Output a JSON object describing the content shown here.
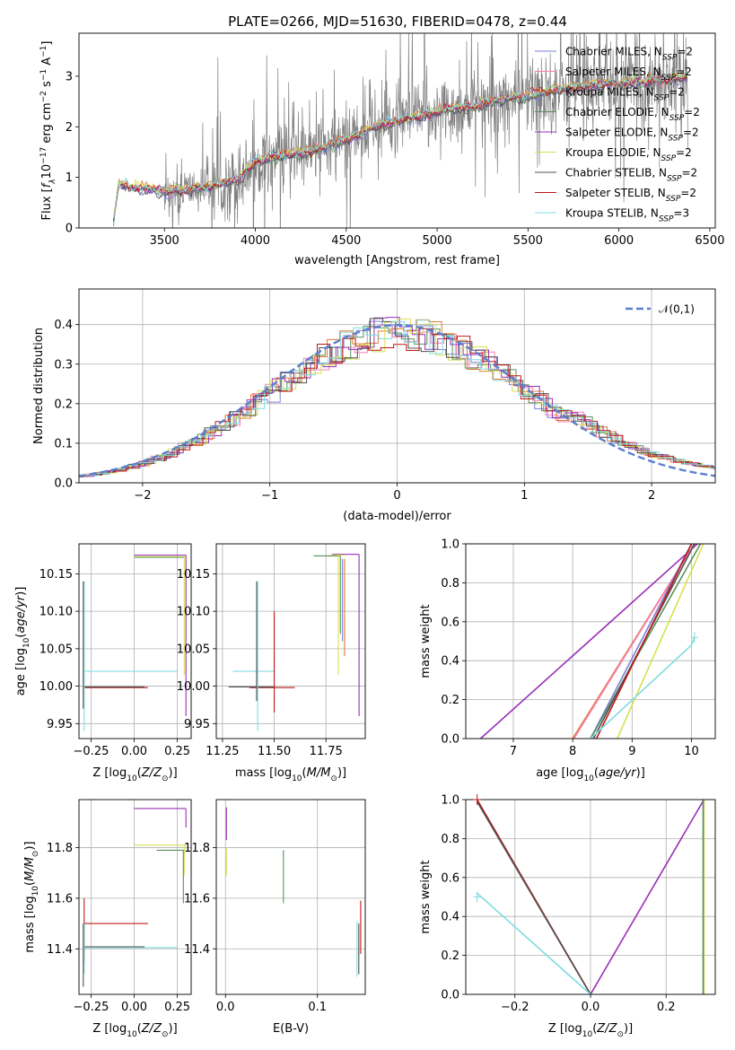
{
  "title": "PLATE=0266, MJD=51630, FIBERID=0478, z=0.44",
  "colors": {
    "Chabrier MILES": "#7b7fd6",
    "Salpeter MILES": "#f77fb2",
    "Kroupa MILES": "#e07b30",
    "Chabrier ELODIE": "#5a8f5a",
    "Salpeter ELODIE": "#9a30b8",
    "Kroupa ELODIE": "#d8e050",
    "Chabrier STELIB": "#505050",
    "Salpeter STELIB": "#c01818",
    "Kroupa STELIB": "#80dce0",
    "data": "#808080",
    "normal": "#5b7fd0"
  },
  "chart_data": [
    {
      "id": "spectrum",
      "type": "line",
      "title": "PLATE=0266, MJD=51630, FIBERID=0478, z=0.44",
      "xlabel": "wavelength [Angstrom, rest frame]",
      "ylabel": "Flux [f_λ 10^-17 erg cm^-2 s^-1 A^-1]",
      "xlim": [
        3030,
        6530
      ],
      "ylim": [
        0,
        3.85
      ],
      "xticks": [
        3500,
        4000,
        4500,
        5000,
        5500,
        6000,
        6500
      ],
      "yticks": [
        0,
        1,
        2,
        3
      ],
      "legend_position": "top-right",
      "series": [
        {
          "name": "Chabrier MILES, N_SSP=2"
        },
        {
          "name": "Salpeter MILES, N_SSP=2"
        },
        {
          "name": "Kroupa MILES, N_SSP=2"
        },
        {
          "name": "Chabrier ELODIE, N_SSP=2"
        },
        {
          "name": "Salpeter ELODIE, N_SSP=2"
        },
        {
          "name": "Kroupa ELODIE, N_SSP=2"
        },
        {
          "name": "Chabrier STELIB, N_SSP=2"
        },
        {
          "name": "Salpeter STELIB, N_SSP=2"
        },
        {
          "name": "Kroupa STELIB, N_SSP=3"
        }
      ],
      "continuum": {
        "x": [
          3220,
          3250,
          3300,
          3500,
          3700,
          3900,
          4000,
          4100,
          4300,
          4500,
          4700,
          4900,
          5000,
          5200,
          5400,
          5600,
          5800,
          6000,
          6200,
          6380
        ],
        "y": [
          0.15,
          0.9,
          0.82,
          0.72,
          0.78,
          0.95,
          1.3,
          1.4,
          1.5,
          1.75,
          2.05,
          2.2,
          2.3,
          2.4,
          2.55,
          2.7,
          2.8,
          2.85,
          2.9,
          3.0
        ]
      }
    },
    {
      "id": "residuals",
      "type": "bar",
      "xlabel": "(data-model)/error",
      "ylabel": "Normed distribution",
      "xlim": [
        -2.5,
        2.5
      ],
      "ylim": [
        0,
        0.49
      ],
      "xticks": [
        -2,
        -1,
        0,
        1,
        2
      ],
      "yticks": [
        0.0,
        0.1,
        0.2,
        0.3,
        0.4
      ],
      "legend": "𝒩(0,1)",
      "grid": true
    },
    {
      "id": "age_vs_Z",
      "type": "scatter",
      "xlabel": "Z [log10(Z/Z⊙)]",
      "ylabel": "age  [log10(age/yr)]",
      "xlim": [
        -0.32,
        0.33
      ],
      "ylim": [
        9.93,
        10.19
      ],
      "xticks": [
        -0.25,
        0.0,
        0.25
      ],
      "yticks": [
        9.95,
        10.0,
        10.05,
        10.1,
        10.15
      ],
      "grid": true,
      "segments": [
        {
          "series": "Salpeter ELODIE",
          "x": [
            0.0,
            0.3
          ],
          "y": [
            10.175,
            10.175
          ]
        },
        {
          "series": "Kroupa ELODIE",
          "x": [
            0.0,
            0.3
          ],
          "y": [
            10.173,
            10.173
          ]
        },
        {
          "series": "Chabrier ELODIE",
          "x": [
            0.0,
            0.29
          ],
          "y": [
            10.172,
            10.172
          ]
        },
        {
          "series": "Salpeter ELODIE",
          "x": [
            0.3,
            0.3
          ],
          "y": [
            9.96,
            10.175
          ]
        },
        {
          "series": "Kroupa ELODIE",
          "x": [
            0.29,
            0.29
          ],
          "y": [
            10.015,
            10.173
          ]
        },
        {
          "series": "Kroupa STELIB",
          "x": [
            -0.29,
            0.25
          ],
          "y": [
            10.02,
            10.02
          ]
        },
        {
          "series": "Salpeter STELIB",
          "x": [
            -0.29,
            0.08
          ],
          "y": [
            9.998,
            9.998
          ]
        },
        {
          "series": "Chabrier STELIB",
          "x": [
            -0.29,
            0.06
          ],
          "y": [
            9.999,
            9.999
          ]
        },
        {
          "series": "Kroupa STELIB",
          "x": [
            -0.29,
            -0.29
          ],
          "y": [
            9.94,
            10.14
          ]
        },
        {
          "series": "Chabrier STELIB",
          "x": [
            -0.295,
            -0.295
          ],
          "y": [
            9.97,
            10.14
          ]
        }
      ]
    },
    {
      "id": "age_vs_mass",
      "type": "scatter",
      "xlabel": "mass [log10(M/M⊙)]",
      "xlim": [
        11.22,
        11.94
      ],
      "ylim": [
        9.93,
        10.19
      ],
      "xticks": [
        11.25,
        11.5,
        11.75
      ],
      "yticks": [
        9.95,
        10.0,
        10.05,
        10.1,
        10.15
      ],
      "grid": true,
      "segments": [
        {
          "series": "Chabrier ELODIE",
          "x": [
            11.69,
            11.82
          ],
          "y": [
            10.174,
            10.174
          ]
        },
        {
          "series": "Salpeter ELODIE",
          "x": [
            11.78,
            11.91
          ],
          "y": [
            10.176,
            10.176
          ]
        },
        {
          "series": "Kroupa ELODIE",
          "x": [
            11.77,
            11.84
          ],
          "y": [
            10.175,
            10.175
          ]
        },
        {
          "series": "Salpeter ELODIE",
          "x": [
            11.91,
            11.91
          ],
          "y": [
            9.96,
            10.176
          ]
        },
        {
          "series": "Kroupa ELODIE",
          "x": [
            11.81,
            11.81
          ],
          "y": [
            10.015,
            10.175
          ]
        },
        {
          "series": "Chabrier MILES",
          "x": [
            11.83,
            11.83
          ],
          "y": [
            10.06,
            10.17
          ]
        },
        {
          "series": "Kroupa MILES",
          "x": [
            11.84,
            11.84
          ],
          "y": [
            10.04,
            10.17
          ]
        },
        {
          "series": "Chabrier ELODIE",
          "x": [
            11.82,
            11.82
          ],
          "y": [
            10.07,
            10.174
          ]
        },
        {
          "series": "Kroupa STELIB",
          "x": [
            11.3,
            11.5
          ],
          "y": [
            10.02,
            10.02
          ]
        },
        {
          "series": "Salpeter STELIB",
          "x": [
            11.38,
            11.6
          ],
          "y": [
            9.998,
            9.998
          ]
        },
        {
          "series": "Chabrier STELIB",
          "x": [
            11.28,
            11.5
          ],
          "y": [
            9.999,
            9.999
          ]
        },
        {
          "series": "Kroupa STELIB",
          "x": [
            11.42,
            11.42
          ],
          "y": [
            9.94,
            10.14
          ]
        },
        {
          "series": "Chabrier STELIB",
          "x": [
            11.415,
            11.415
          ],
          "y": [
            9.98,
            10.14
          ]
        },
        {
          "series": "Salpeter STELIB",
          "x": [
            11.5,
            11.5
          ],
          "y": [
            9.965,
            10.1
          ]
        }
      ]
    },
    {
      "id": "massweight_vs_age",
      "type": "line",
      "xlabel": "age  [log10(age/yr)]",
      "ylabel": "mass weight",
      "xlim": [
        6.2,
        10.4
      ],
      "ylim": [
        0,
        1.0
      ],
      "xticks": [
        7,
        8,
        9,
        10
      ],
      "yticks": [
        0.0,
        0.2,
        0.4,
        0.6,
        0.8,
        1.0
      ],
      "grid": true,
      "series": [
        {
          "series": "Salpeter ELODIE",
          "x": [
            6.45,
            10.1
          ],
          "y": [
            0,
            1
          ]
        },
        {
          "series": "Kroupa MILES",
          "x": [
            8.0,
            10.05
          ],
          "y": [
            0,
            1
          ]
        },
        {
          "series": "Salpeter MILES",
          "x": [
            8.02,
            10.05
          ],
          "y": [
            0,
            1
          ]
        },
        {
          "series": "Chabrier MILES",
          "x": [
            8.3,
            10.0
          ],
          "y": [
            0,
            1
          ]
        },
        {
          "series": "Chabrier ELODIE",
          "x": [
            8.3,
            10.15
          ],
          "y": [
            0,
            1
          ]
        },
        {
          "series": "Chabrier STELIB",
          "x": [
            8.35,
            10.05
          ],
          "y": [
            0,
            1
          ]
        },
        {
          "series": "Salpeter STELIB",
          "x": [
            8.4,
            10.0
          ],
          "y": [
            0,
            1
          ]
        },
        {
          "series": "Kroupa ELODIE",
          "x": [
            8.75,
            10.2
          ],
          "y": [
            0,
            1
          ]
        },
        {
          "series": "Kroupa STELIB",
          "x": [
            8.3,
            10.0,
            10.05
          ],
          "y": [
            0,
            0.48,
            0.52
          ]
        }
      ]
    },
    {
      "id": "mass_vs_Z",
      "type": "scatter",
      "xlabel": "Z [log10(Z/Z⊙)]",
      "ylabel": "mass [log10(M/M⊙)]",
      "xlim": [
        -0.32,
        0.33
      ],
      "ylim": [
        11.22,
        11.99
      ],
      "xticks": [
        -0.25,
        0.0,
        0.25
      ],
      "yticks": [
        11.4,
        11.6,
        11.8
      ],
      "grid": true,
      "segments": [
        {
          "series": "Salpeter ELODIE",
          "x": [
            0.0,
            0.3
          ],
          "y": [
            11.955,
            11.955
          ]
        },
        {
          "series": "Kroupa ELODIE",
          "x": [
            0.0,
            0.3
          ],
          "y": [
            11.81,
            11.81
          ]
        },
        {
          "series": "Chabrier ELODIE",
          "x": [
            0.13,
            0.29
          ],
          "y": [
            11.79,
            11.79
          ]
        },
        {
          "series": "Salpeter ELODIE",
          "x": [
            0.3,
            0.3
          ],
          "y": [
            11.88,
            11.955
          ]
        },
        {
          "series": "Kroupa ELODIE",
          "x": [
            0.29,
            0.29
          ],
          "y": [
            11.69,
            11.81
          ]
        },
        {
          "series": "Chabrier ELODIE",
          "x": [
            0.285,
            0.285
          ],
          "y": [
            11.58,
            11.79
          ]
        },
        {
          "series": "Salpeter STELIB",
          "x": [
            -0.29,
            0.08
          ],
          "y": [
            11.5,
            11.5
          ]
        },
        {
          "series": "Salpeter STELIB",
          "x": [
            -0.29,
            -0.29
          ],
          "y": [
            11.35,
            11.6
          ]
        },
        {
          "series": "Kroupa STELIB",
          "x": [
            -0.29,
            0.25
          ],
          "y": [
            11.405,
            11.405
          ]
        },
        {
          "series": "Chabrier STELIB",
          "x": [
            -0.29,
            0.06
          ],
          "y": [
            11.408,
            11.408
          ]
        },
        {
          "series": "Kroupa STELIB",
          "x": [
            -0.29,
            -0.29
          ],
          "y": [
            11.3,
            11.5
          ]
        },
        {
          "series": "Chabrier STELIB",
          "x": [
            -0.295,
            -0.295
          ],
          "y": [
            11.25,
            11.5
          ]
        }
      ]
    },
    {
      "id": "mass_vs_ebv",
      "type": "scatter",
      "xlabel": "E(B-V)",
      "xlim": [
        -0.01,
        0.152
      ],
      "ylim": [
        11.22,
        11.99
      ],
      "xticks": [
        0.0,
        0.1
      ],
      "yticks": [
        11.4,
        11.6,
        11.8
      ],
      "grid": true,
      "segments": [
        {
          "series": "Salpeter ELODIE",
          "x": [
            0.001,
            0.001
          ],
          "y": [
            11.83,
            11.96
          ]
        },
        {
          "series": "Kroupa ELODIE",
          "x": [
            0.001,
            0.001
          ],
          "y": [
            11.69,
            11.8
          ]
        },
        {
          "series": "Chabrier ELODIE",
          "x": [
            0.063,
            0.063
          ],
          "y": [
            11.58,
            11.79
          ]
        },
        {
          "series": "Kroupa STELIB",
          "x": [
            0.143,
            0.143
          ],
          "y": [
            11.29,
            11.51
          ]
        },
        {
          "series": "Salpeter STELIB",
          "x": [
            0.147,
            0.147
          ],
          "y": [
            11.38,
            11.59
          ]
        },
        {
          "series": "Chabrier STELIB",
          "x": [
            0.145,
            0.145
          ],
          "y": [
            11.3,
            11.5
          ]
        }
      ]
    },
    {
      "id": "massweight_vs_Z",
      "type": "line",
      "xlabel": "Z [log10(Z/Z⊙)]",
      "ylabel": "mass weight",
      "xlim": [
        -0.33,
        0.33
      ],
      "ylim": [
        0,
        1.0
      ],
      "xticks": [
        -0.2,
        0.0,
        0.2
      ],
      "yticks": [
        0.0,
        0.2,
        0.4,
        0.6,
        0.8,
        1.0
      ],
      "grid": true,
      "series": [
        {
          "series": "Salpeter ELODIE",
          "x": [
            0.0,
            0.3
          ],
          "y": [
            0,
            1
          ]
        },
        {
          "series": "Salpeter STELIB",
          "x": [
            -0.3,
            0.0
          ],
          "y": [
            1,
            0
          ]
        },
        {
          "series": "Chabrier STELIB",
          "x": [
            -0.3,
            0.0
          ],
          "y": [
            0.99,
            0
          ]
        },
        {
          "series": "Kroupa STELIB",
          "x": [
            -0.3,
            0.0
          ],
          "y": [
            0.52,
            0
          ]
        },
        {
          "series": "Kroupa ELODIE",
          "x": [
            0.3,
            0.3
          ],
          "y": [
            0,
            1
          ]
        },
        {
          "series": "Chabrier ELODIE",
          "x": [
            0.298,
            0.298
          ],
          "y": [
            0,
            1
          ]
        }
      ]
    }
  ]
}
